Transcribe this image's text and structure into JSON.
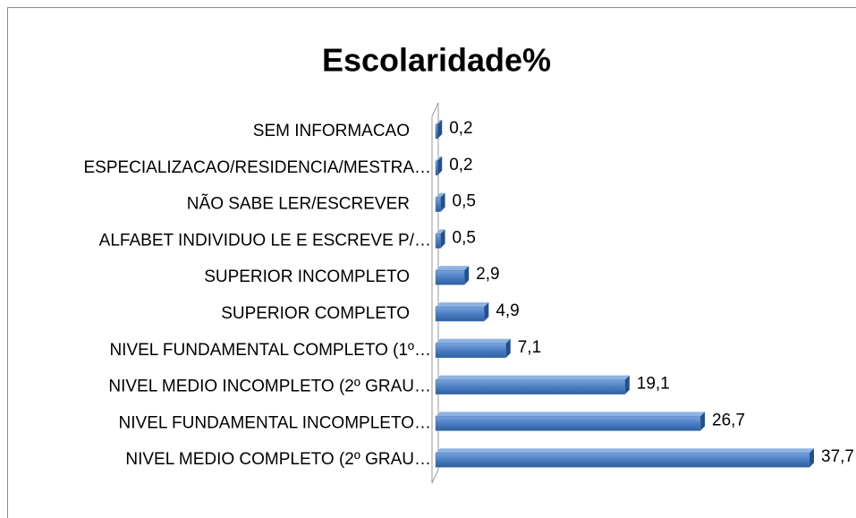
{
  "chart_data": {
    "type": "bar",
    "orientation": "horizontal",
    "title": "Escolaridade%",
    "categories": [
      "SEM INFORMACAO",
      "ESPECIALIZACAO/RESIDENCIA/MESTRA…",
      "NÃO SABE LER/ESCREVER",
      "ALFABET INDIVIDUO LE E ESCREVE P/…",
      "SUPERIOR INCOMPLETO",
      "SUPERIOR COMPLETO",
      "NIVEL FUNDAMENTAL COMPLETO (1º…",
      "NIVEL MEDIO INCOMPLETO (2º GRAU…",
      "NIVEL FUNDAMENTAL INCOMPLETO…",
      "NIVEL MEDIO COMPLETO (2º GRAU…"
    ],
    "values": [
      0.2,
      0.2,
      0.5,
      0.5,
      2.9,
      4.9,
      7.1,
      19.1,
      26.7,
      37.7
    ],
    "value_labels": [
      "0,2",
      "0,2",
      "0,5",
      "0,5",
      "2,9",
      "4,9",
      "7,1",
      "19,1",
      "26,7",
      "37,7"
    ],
    "color": "#4a7ec4"
  }
}
